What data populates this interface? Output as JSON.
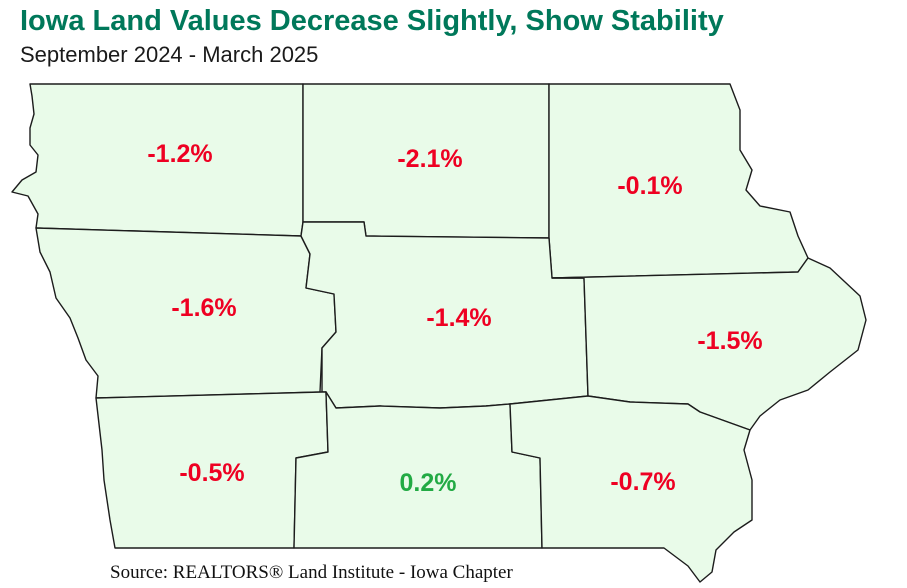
{
  "header": {
    "title": "Iowa Land Values Decrease Slightly, Show Stability",
    "subtitle": "September 2024 - March 2025"
  },
  "colors": {
    "title": "#00785a",
    "decrease": "#ee0022",
    "increase": "#22aa44",
    "region_fill": "#e9fbe9",
    "border": "#1c1c1c"
  },
  "map": {
    "state": "Iowa",
    "regions": [
      {
        "id": "northwest",
        "change": "-1.2%",
        "direction": "decrease"
      },
      {
        "id": "north-central",
        "change": "-2.1%",
        "direction": "decrease"
      },
      {
        "id": "northeast",
        "change": "-0.1%",
        "direction": "decrease"
      },
      {
        "id": "west-central",
        "change": "-1.6%",
        "direction": "decrease"
      },
      {
        "id": "central",
        "change": "-1.4%",
        "direction": "decrease"
      },
      {
        "id": "east-central",
        "change": "-1.5%",
        "direction": "decrease"
      },
      {
        "id": "southwest",
        "change": "-0.5%",
        "direction": "decrease"
      },
      {
        "id": "south-central",
        "change": "0.2%",
        "direction": "increase"
      },
      {
        "id": "southeast",
        "change": "-0.7%",
        "direction": "decrease"
      }
    ]
  },
  "footer": {
    "source": "Source: REALTORS® Land Institute - Iowa Chapter"
  }
}
